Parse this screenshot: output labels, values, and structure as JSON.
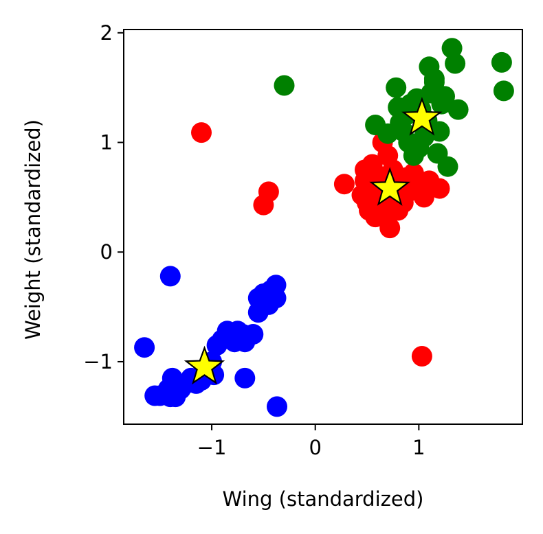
{
  "chart_data": {
    "type": "scatter",
    "title": "",
    "xlabel": "Wing (standardized)",
    "ylabel": "Weight (standardized)",
    "xlim": [
      -1.85,
      2.0
    ],
    "ylim": [
      -1.57,
      2.03
    ],
    "xticks": [
      -1,
      0,
      1
    ],
    "yticks": [
      -1,
      0,
      1,
      2
    ],
    "xtick_labels": [
      "−1",
      "0",
      "1"
    ],
    "ytick_labels": [
      "−1",
      "0",
      "1",
      "2"
    ],
    "grid": false,
    "legend": "none",
    "series": [
      {
        "color": "#0000ff",
        "points": [
          [
            -1.65,
            -0.87
          ],
          [
            -1.4,
            -0.22
          ],
          [
            -1.55,
            -1.31
          ],
          [
            -1.5,
            -1.31
          ],
          [
            -1.45,
            -1.3
          ],
          [
            -1.4,
            -1.32
          ],
          [
            -1.35,
            -1.32
          ],
          [
            -1.42,
            -1.25
          ],
          [
            -1.38,
            -1.15
          ],
          [
            -1.3,
            -1.25
          ],
          [
            -1.25,
            -1.2
          ],
          [
            -1.2,
            -1.15
          ],
          [
            -1.15,
            -1.2
          ],
          [
            -1.1,
            -1.17
          ],
          [
            -1.05,
            -1.12
          ],
          [
            -0.98,
            -1.12
          ],
          [
            -1.0,
            -1.0
          ],
          [
            -0.95,
            -0.85
          ],
          [
            -0.9,
            -0.8
          ],
          [
            -0.85,
            -0.72
          ],
          [
            -0.78,
            -0.82
          ],
          [
            -0.75,
            -0.72
          ],
          [
            -0.7,
            -0.75
          ],
          [
            -0.68,
            -0.82
          ],
          [
            -0.6,
            -0.75
          ],
          [
            -0.68,
            -1.15
          ],
          [
            -0.55,
            -0.55
          ],
          [
            -0.55,
            -0.42
          ],
          [
            -0.5,
            -0.38
          ],
          [
            -0.47,
            -0.43
          ],
          [
            -0.43,
            -0.35
          ],
          [
            -0.45,
            -0.48
          ],
          [
            -0.38,
            -0.3
          ],
          [
            -0.38,
            -0.42
          ],
          [
            -0.37,
            -1.41
          ]
        ]
      },
      {
        "color": "#ff0000",
        "points": [
          [
            -1.1,
            1.09
          ],
          [
            -0.45,
            0.55
          ],
          [
            -0.5,
            0.43
          ],
          [
            0.28,
            0.62
          ],
          [
            0.45,
            0.52
          ],
          [
            0.48,
            0.65
          ],
          [
            0.5,
            0.45
          ],
          [
            0.52,
            0.38
          ],
          [
            0.55,
            0.55
          ],
          [
            0.58,
            0.32
          ],
          [
            0.6,
            0.7
          ],
          [
            0.62,
            0.48
          ],
          [
            0.65,
            0.4
          ],
          [
            0.68,
            0.6
          ],
          [
            0.7,
            0.33
          ],
          [
            0.72,
            0.22
          ],
          [
            0.75,
            0.75
          ],
          [
            0.78,
            0.5
          ],
          [
            0.8,
            0.38
          ],
          [
            0.82,
            0.62
          ],
          [
            0.85,
            0.45
          ],
          [
            0.88,
            0.68
          ],
          [
            0.9,
            0.55
          ],
          [
            0.95,
            0.72
          ],
          [
            1.0,
            0.6
          ],
          [
            1.05,
            0.5
          ],
          [
            1.1,
            0.65
          ],
          [
            1.2,
            0.58
          ],
          [
            0.65,
            1.0
          ],
          [
            0.7,
            0.88
          ],
          [
            0.55,
            0.8
          ],
          [
            0.48,
            0.75
          ],
          [
            1.03,
            -0.95
          ]
        ]
      },
      {
        "color": "#008000",
        "points": [
          [
            -0.3,
            1.52
          ],
          [
            0.58,
            1.16
          ],
          [
            0.7,
            1.08
          ],
          [
            0.78,
            1.5
          ],
          [
            0.8,
            1.32
          ],
          [
            0.82,
            1.18
          ],
          [
            0.85,
            1.1
          ],
          [
            0.88,
            1.25
          ],
          [
            0.9,
            1.0
          ],
          [
            0.92,
            1.35
          ],
          [
            0.95,
            0.88
          ],
          [
            0.98,
            1.4
          ],
          [
            1.0,
            0.95
          ],
          [
            1.02,
            1.3
          ],
          [
            1.05,
            1.05
          ],
          [
            1.08,
            1.2
          ],
          [
            1.1,
            1.69
          ],
          [
            1.12,
            1.45
          ],
          [
            1.15,
            1.55
          ],
          [
            1.18,
            0.9
          ],
          [
            1.2,
            1.1
          ],
          [
            1.22,
            1.35
          ],
          [
            1.25,
            1.42
          ],
          [
            1.28,
            0.78
          ],
          [
            1.32,
            1.86
          ],
          [
            1.35,
            1.72
          ],
          [
            1.38,
            1.3
          ],
          [
            1.8,
            1.73
          ],
          [
            1.82,
            1.47
          ],
          [
            1.15,
            1.58
          ]
        ]
      }
    ],
    "centroids": {
      "marker": "star",
      "color": "#ffff00",
      "points": [
        [
          -1.07,
          -1.05
        ],
        [
          0.72,
          0.58
        ],
        [
          1.03,
          1.22
        ]
      ]
    }
  }
}
